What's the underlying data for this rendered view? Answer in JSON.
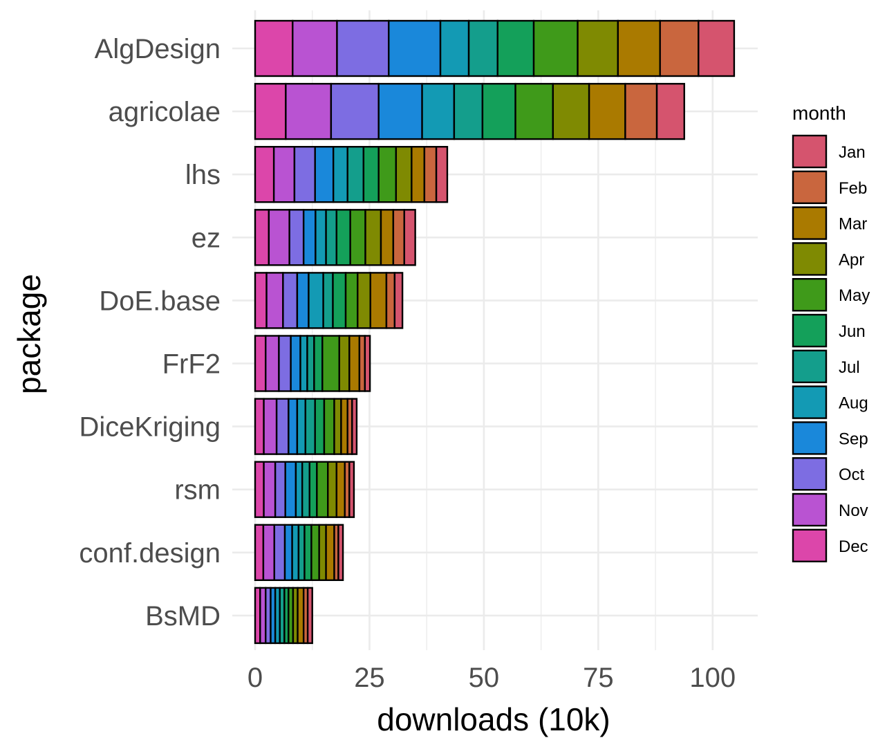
{
  "chart_data": {
    "type": "bar",
    "orientation": "horizontal",
    "stacked": true,
    "xlabel": "downloads (10k)",
    "ylabel": "package",
    "xlim": [
      0,
      110
    ],
    "x_ticks": [
      0,
      25,
      50,
      75,
      100
    ],
    "x_tick_labels": [
      "0",
      "25",
      "50",
      "75",
      "100"
    ],
    "grid": true,
    "legend": {
      "title": "month",
      "position": "right",
      "entries": [
        "Jan",
        "Feb",
        "Mar",
        "Apr",
        "May",
        "Jun",
        "Jul",
        "Aug",
        "Sep",
        "Oct",
        "Nov",
        "Dec"
      ]
    },
    "stack_order": [
      "Dec",
      "Nov",
      "Oct",
      "Sep",
      "Aug",
      "Jul",
      "Jun",
      "May",
      "Apr",
      "Mar",
      "Feb",
      "Jan"
    ],
    "colors": {
      "Jan": "#D5546E",
      "Feb": "#C9663E",
      "Mar": "#AA7A00",
      "Apr": "#7F8A02",
      "May": "#3F9A1A",
      "Jun": "#14A05A",
      "Jul": "#149E8C",
      "Aug": "#139AB4",
      "Sep": "#1A88DA",
      "Oct": "#7D6DE2",
      "Nov": "#B953D2",
      "Dec": "#DC46AA"
    },
    "categories": [
      "AlgDesign",
      "agricolae",
      "lhs",
      "ez",
      "DoE.base",
      "FrF2",
      "DiceKriging",
      "rsm",
      "conf.design",
      "BsMD"
    ],
    "series": [
      {
        "name": "Dec",
        "values": [
          8.2,
          6.7,
          4.1,
          3.0,
          2.5,
          2.3,
          1.9,
          1.9,
          1.8,
          1.1
        ]
      },
      {
        "name": "Nov",
        "values": [
          9.7,
          9.9,
          4.5,
          4.5,
          3.6,
          2.9,
          2.8,
          2.5,
          2.4,
          1.2
        ]
      },
      {
        "name": "Oct",
        "values": [
          11.3,
          10.4,
          4.5,
          3.1,
          3.1,
          2.6,
          2.6,
          2.2,
          2.3,
          1.1
        ]
      },
      {
        "name": "Sep",
        "values": [
          11.3,
          9.5,
          4.0,
          2.6,
          2.5,
          2.1,
          1.9,
          2.3,
          1.6,
          1.0
        ]
      },
      {
        "name": "Aug",
        "values": [
          6.2,
          7.0,
          3.1,
          2.3,
          3.2,
          1.5,
          1.8,
          1.4,
          1.4,
          1.0
        ]
      },
      {
        "name": "Jul",
        "values": [
          6.3,
          6.2,
          3.5,
          2.3,
          2.1,
          1.5,
          2.1,
          1.6,
          1.3,
          1.0
        ]
      },
      {
        "name": "Jun",
        "values": [
          7.9,
          7.2,
          3.3,
          3.0,
          2.8,
          1.8,
          2.0,
          1.6,
          1.5,
          0.9
        ]
      },
      {
        "name": "May",
        "values": [
          9.6,
          8.2,
          3.8,
          3.3,
          2.6,
          3.7,
          2.2,
          2.4,
          1.7,
          1.0
        ]
      },
      {
        "name": "Apr",
        "values": [
          8.8,
          7.9,
          3.4,
          3.4,
          2.8,
          2.2,
          1.5,
          1.9,
          1.5,
          1.0
        ]
      },
      {
        "name": "Mar",
        "values": [
          9.2,
          7.9,
          2.8,
          2.7,
          3.5,
          2.2,
          1.4,
          1.8,
          1.8,
          1.3
        ]
      },
      {
        "name": "Feb",
        "values": [
          8.4,
          6.9,
          2.6,
          2.4,
          1.8,
          1.2,
          1.0,
          1.0,
          0.9,
          0.9
        ]
      },
      {
        "name": "Jan",
        "values": [
          7.8,
          6.0,
          2.4,
          2.4,
          1.7,
          1.1,
          1.0,
          1.0,
          1.0,
          1.0
        ]
      }
    ]
  }
}
